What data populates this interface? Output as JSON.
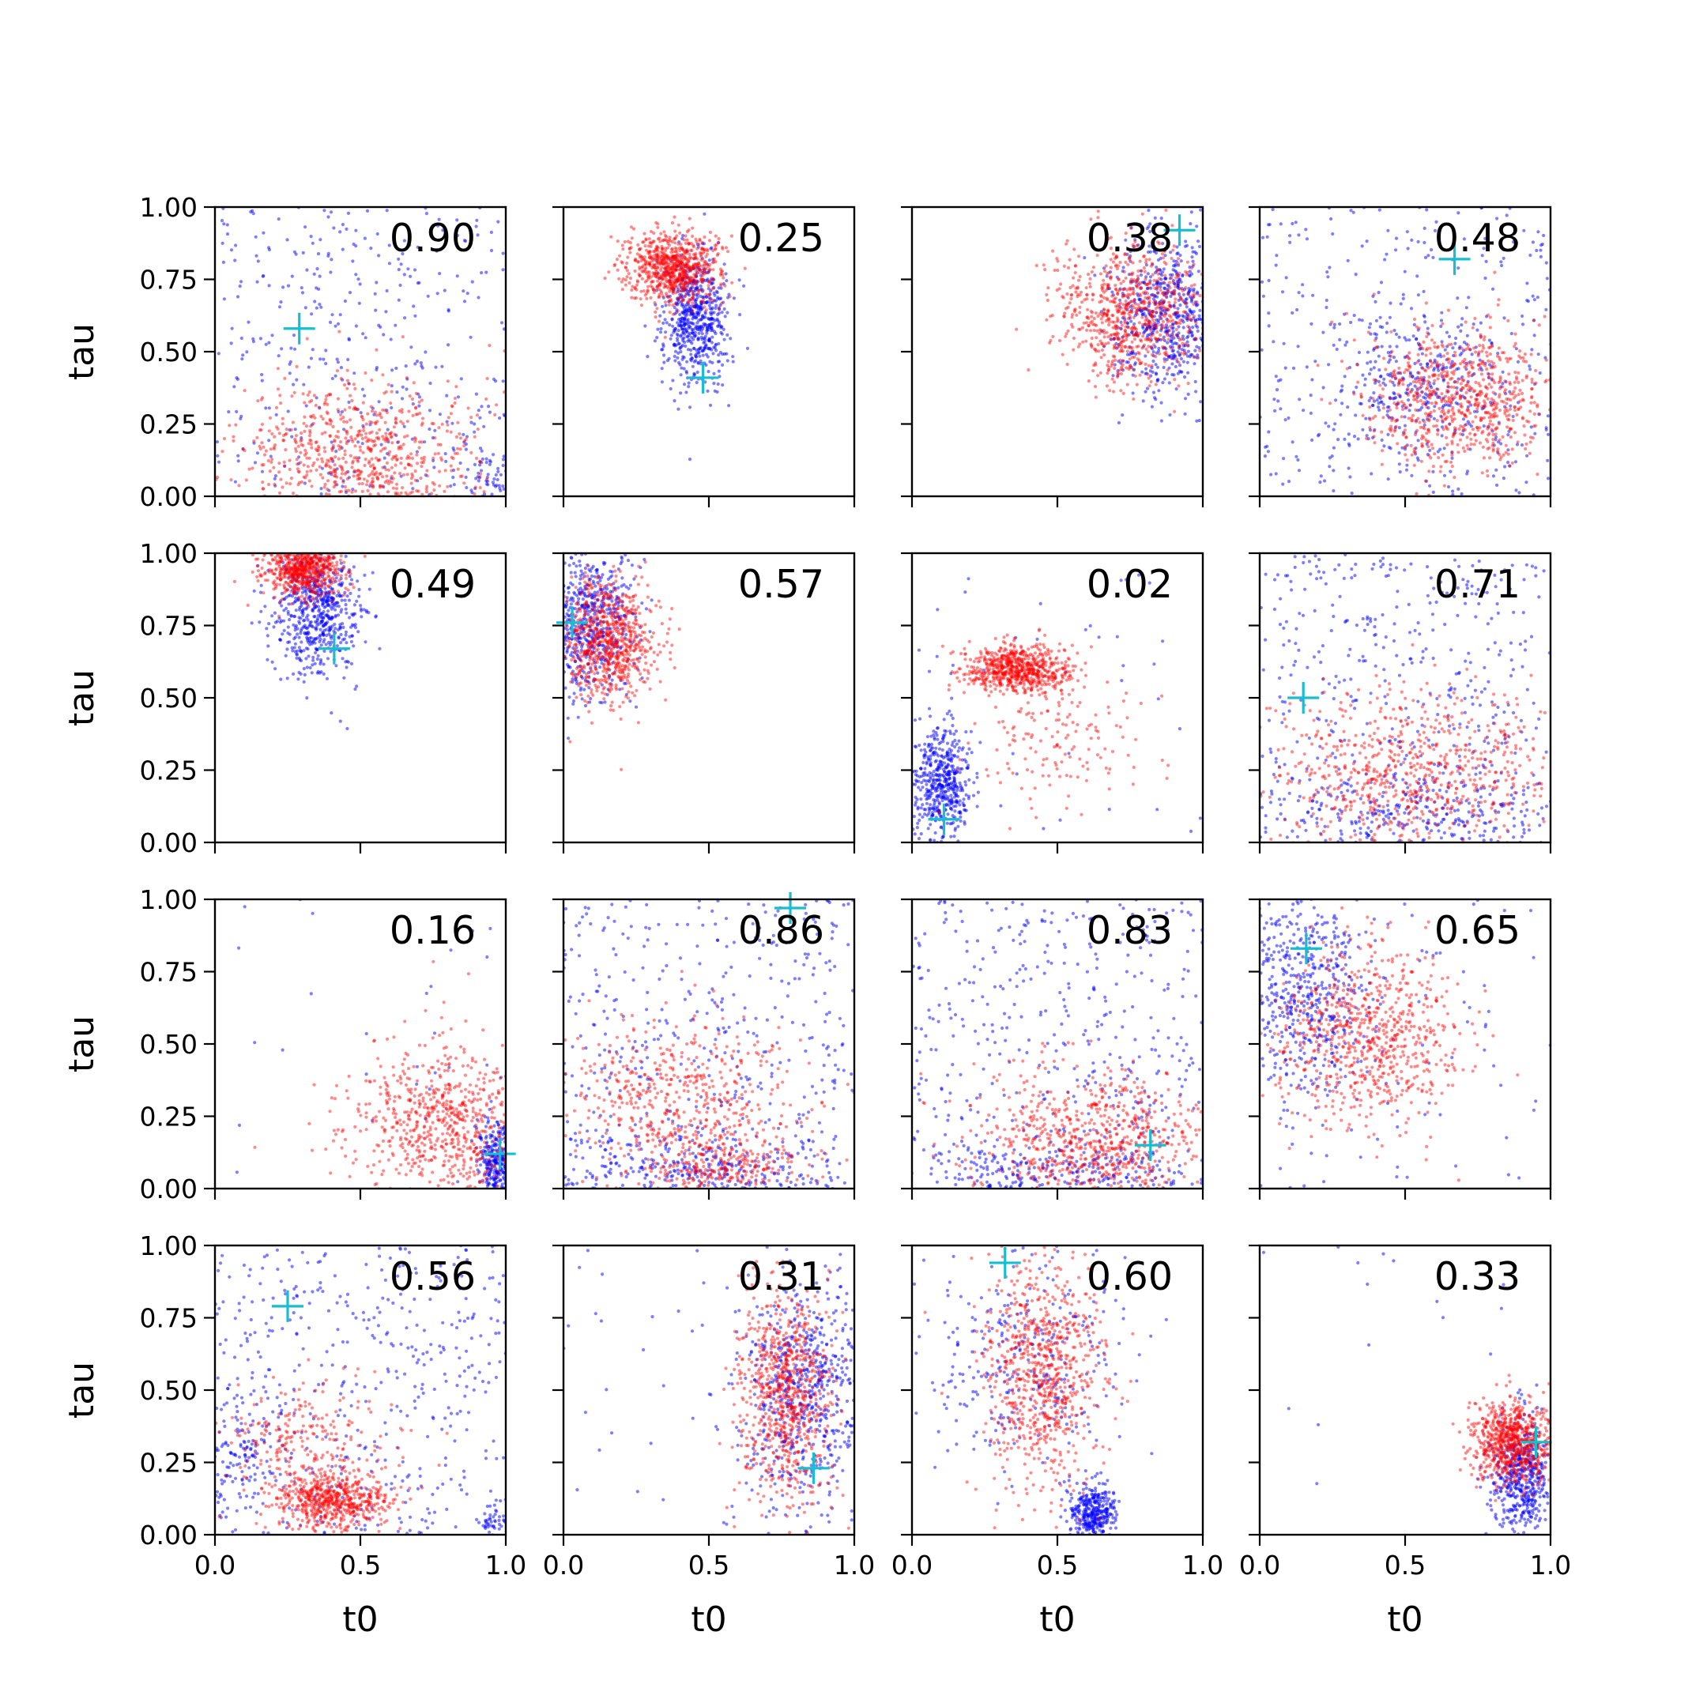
{
  "colors": {
    "series_a": "#0000ff",
    "series_b": "#ff0000",
    "marker": "#17becf"
  },
  "chart_data": {
    "type": "scatter",
    "rows": 4,
    "cols": 4,
    "xlabel": "t0",
    "ylabel": "tau",
    "xlim": [
      0,
      1
    ],
    "ylim": [
      0,
      1
    ],
    "xticks": [
      0,
      0.5,
      1
    ],
    "xtick_labels": [
      "0.0",
      "0.5",
      "1.0"
    ],
    "yticks": [
      0,
      0.25,
      0.5,
      0.75,
      1
    ],
    "ytick_labels": [
      "0.00",
      "0.25",
      "0.50",
      "0.75",
      "1.00"
    ],
    "grid": false,
    "series_colors": [
      "#0000ff",
      "#ff0000"
    ],
    "panels": [
      {
        "value_label": "0.90",
        "marker": [
          0.29,
          0.58
        ],
        "clusters": [
          {
            "series": 0,
            "shape": "uniform",
            "count": 380
          },
          {
            "series": 0,
            "cx": 0.95,
            "cy": 0.05,
            "sx": 0.05,
            "sy": 0.05,
            "count": 60
          },
          {
            "series": 1,
            "cx": 0.5,
            "cy": 0.14,
            "sx": 0.2,
            "sy": 0.13,
            "count": 760
          }
        ]
      },
      {
        "value_label": "0.25",
        "marker": [
          0.48,
          0.41
        ],
        "clusters": [
          {
            "series": 0,
            "cx": 0.45,
            "cy": 0.62,
            "sx": 0.055,
            "sy": 0.12,
            "count": 620
          },
          {
            "series": 1,
            "cx": 0.38,
            "cy": 0.79,
            "sx": 0.08,
            "sy": 0.06,
            "count": 780
          }
        ]
      },
      {
        "value_label": "0.38",
        "marker": [
          0.92,
          0.92
        ],
        "clusters": [
          {
            "series": 0,
            "cx": 0.87,
            "cy": 0.63,
            "sx": 0.09,
            "sy": 0.14,
            "count": 620
          },
          {
            "series": 1,
            "cx": 0.76,
            "cy": 0.63,
            "sx": 0.13,
            "sy": 0.12,
            "count": 780
          }
        ]
      },
      {
        "value_label": "0.48",
        "marker": [
          0.67,
          0.82
        ],
        "clusters": [
          {
            "series": 0,
            "shape": "uniform",
            "count": 380
          },
          {
            "series": 0,
            "cx": 0.55,
            "cy": 0.38,
            "sx": 0.16,
            "sy": 0.12,
            "count": 260
          },
          {
            "series": 1,
            "cx": 0.68,
            "cy": 0.34,
            "sx": 0.16,
            "sy": 0.12,
            "count": 760
          }
        ]
      },
      {
        "value_label": "0.49",
        "marker": [
          0.41,
          0.67
        ],
        "clusters": [
          {
            "series": 0,
            "cx": 0.35,
            "cy": 0.8,
            "sx": 0.075,
            "sy": 0.11,
            "count": 620
          },
          {
            "series": 1,
            "cx": 0.3,
            "cy": 0.95,
            "sx": 0.07,
            "sy": 0.05,
            "count": 700
          }
        ]
      },
      {
        "value_label": "0.57",
        "marker": [
          0.03,
          0.76
        ],
        "clusters": [
          {
            "series": 0,
            "cx": 0.08,
            "cy": 0.76,
            "sx": 0.08,
            "sy": 0.13,
            "count": 620
          },
          {
            "series": 1,
            "cx": 0.15,
            "cy": 0.7,
            "sx": 0.08,
            "sy": 0.1,
            "count": 760
          }
        ]
      },
      {
        "value_label": "0.02",
        "marker": [
          0.11,
          0.08
        ],
        "clusters": [
          {
            "series": 0,
            "cx": 0.1,
            "cy": 0.2,
            "sx": 0.05,
            "sy": 0.1,
            "count": 520
          },
          {
            "series": 0,
            "shape": "uniform",
            "count": 40
          },
          {
            "series": 1,
            "cx": 0.36,
            "cy": 0.6,
            "sx": 0.09,
            "sy": 0.04,
            "count": 700
          },
          {
            "series": 1,
            "cx": 0.48,
            "cy": 0.38,
            "sx": 0.16,
            "sy": 0.12,
            "count": 160
          }
        ]
      },
      {
        "value_label": "0.71",
        "marker": [
          0.15,
          0.5
        ],
        "clusters": [
          {
            "series": 0,
            "shape": "uniform",
            "count": 440
          },
          {
            "series": 0,
            "cx": 0.55,
            "cy": 0.1,
            "sx": 0.25,
            "sy": 0.08,
            "count": 260
          },
          {
            "series": 1,
            "cx": 0.52,
            "cy": 0.25,
            "sx": 0.25,
            "sy": 0.14,
            "count": 740
          }
        ]
      },
      {
        "value_label": "0.16",
        "marker": [
          0.98,
          0.12
        ],
        "clusters": [
          {
            "series": 0,
            "cx": 0.97,
            "cy": 0.1,
            "sx": 0.03,
            "sy": 0.07,
            "count": 320
          },
          {
            "series": 0,
            "shape": "uniform",
            "count": 30
          },
          {
            "series": 1,
            "cx": 0.8,
            "cy": 0.22,
            "sx": 0.17,
            "sy": 0.14,
            "count": 780
          }
        ]
      },
      {
        "value_label": "0.86",
        "marker": [
          0.78,
          0.97
        ],
        "clusters": [
          {
            "series": 0,
            "shape": "uniform",
            "count": 440
          },
          {
            "series": 0,
            "cx": 0.45,
            "cy": 0.06,
            "sx": 0.25,
            "sy": 0.06,
            "count": 300
          },
          {
            "series": 1,
            "cx": 0.4,
            "cy": 0.32,
            "sx": 0.2,
            "sy": 0.14,
            "count": 520
          },
          {
            "series": 1,
            "cx": 0.55,
            "cy": 0.08,
            "sx": 0.15,
            "sy": 0.05,
            "count": 260
          }
        ]
      },
      {
        "value_label": "0.83",
        "marker": [
          0.82,
          0.15
        ],
        "clusters": [
          {
            "series": 0,
            "shape": "uniform",
            "count": 440
          },
          {
            "series": 0,
            "cx": 0.5,
            "cy": 0.05,
            "sx": 0.3,
            "sy": 0.05,
            "count": 240
          },
          {
            "series": 1,
            "cx": 0.63,
            "cy": 0.17,
            "sx": 0.2,
            "sy": 0.12,
            "count": 760
          }
        ]
      },
      {
        "value_label": "0.65",
        "marker": [
          0.16,
          0.83
        ],
        "clusters": [
          {
            "series": 0,
            "cx": 0.15,
            "cy": 0.68,
            "sx": 0.12,
            "sy": 0.18,
            "count": 560
          },
          {
            "series": 0,
            "shape": "uniform",
            "count": 80
          },
          {
            "series": 1,
            "cx": 0.38,
            "cy": 0.52,
            "sx": 0.15,
            "sy": 0.15,
            "count": 740
          }
        ]
      },
      {
        "value_label": "0.56",
        "marker": [
          0.25,
          0.79
        ],
        "clusters": [
          {
            "series": 0,
            "shape": "uniform",
            "count": 440
          },
          {
            "series": 0,
            "cx": 0.08,
            "cy": 0.3,
            "sx": 0.08,
            "sy": 0.15,
            "count": 160
          },
          {
            "series": 0,
            "cx": 0.96,
            "cy": 0.05,
            "sx": 0.03,
            "sy": 0.03,
            "count": 40
          },
          {
            "series": 1,
            "cx": 0.4,
            "cy": 0.12,
            "sx": 0.1,
            "sy": 0.05,
            "count": 600
          },
          {
            "series": 1,
            "cx": 0.3,
            "cy": 0.33,
            "sx": 0.15,
            "sy": 0.12,
            "count": 260
          }
        ]
      },
      {
        "value_label": "0.31",
        "marker": [
          0.86,
          0.23
        ],
        "clusters": [
          {
            "series": 0,
            "cx": 0.83,
            "cy": 0.5,
            "sx": 0.1,
            "sy": 0.2,
            "count": 620
          },
          {
            "series": 0,
            "shape": "uniform",
            "count": 60
          },
          {
            "series": 1,
            "cx": 0.76,
            "cy": 0.48,
            "sx": 0.08,
            "sy": 0.18,
            "count": 780
          }
        ]
      },
      {
        "value_label": "0.60",
        "marker": [
          0.32,
          0.94
        ],
        "clusters": [
          {
            "series": 0,
            "cx": 0.62,
            "cy": 0.08,
            "sx": 0.04,
            "sy": 0.05,
            "count": 360
          },
          {
            "series": 0,
            "cx": 0.38,
            "cy": 0.62,
            "sx": 0.18,
            "sy": 0.2,
            "count": 320
          },
          {
            "series": 1,
            "cx": 0.45,
            "cy": 0.55,
            "sx": 0.1,
            "sy": 0.2,
            "count": 780
          }
        ]
      },
      {
        "value_label": "0.33",
        "marker": [
          0.95,
          0.32
        ],
        "clusters": [
          {
            "series": 0,
            "cx": 0.9,
            "cy": 0.2,
            "sx": 0.05,
            "sy": 0.1,
            "count": 500
          },
          {
            "series": 0,
            "shape": "uniform",
            "count": 20
          },
          {
            "series": 1,
            "cx": 0.87,
            "cy": 0.32,
            "sx": 0.07,
            "sy": 0.07,
            "count": 780
          }
        ]
      }
    ]
  }
}
